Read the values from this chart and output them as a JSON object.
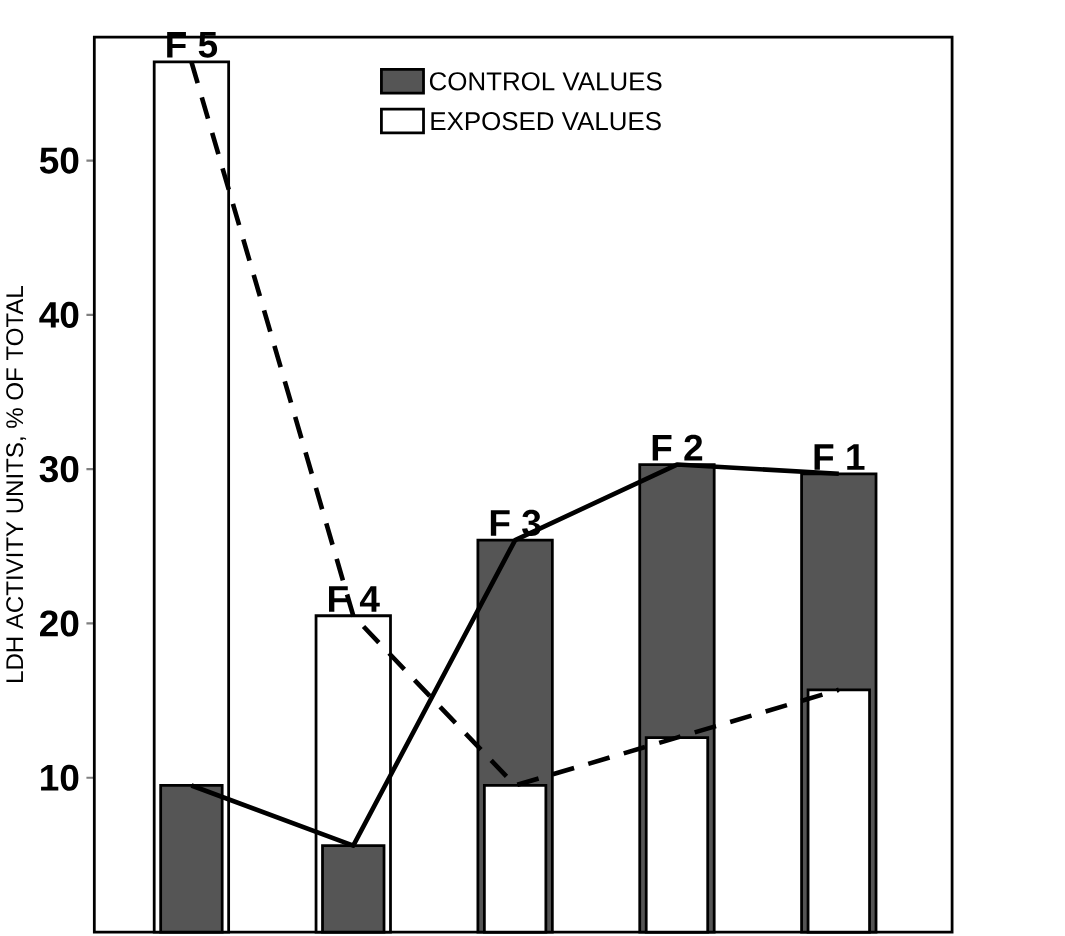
{
  "chart_data": {
    "type": "bar",
    "ylabel": "LDH ACTIVITY UNITS, % OF TOTAL",
    "categories": [
      "F 5",
      "F 4",
      "F 3",
      "F 2",
      "F 1"
    ],
    "series": [
      {
        "name": "CONTROL VALUES",
        "color": "#555555",
        "values": [
          9.5,
          5.6,
          25.4,
          30.3,
          29.7
        ]
      },
      {
        "name": "EXPOSED VALUES",
        "color": "#ffffff",
        "values": [
          56.4,
          20.5,
          9.5,
          12.6,
          15.7
        ]
      },
      {
        "type": "line",
        "color": "#000000",
        "line_style": "solid",
        "values": [
          9.5,
          5.6,
          25.4,
          30.3,
          29.7
        ]
      },
      {
        "type": "line",
        "color": "#000000",
        "line_style": "dashed",
        "values": [
          56.4,
          20.5,
          9.5,
          12.6,
          15.7
        ]
      }
    ],
    "ylim": [
      0,
      58
    ],
    "yticks": [
      10,
      20,
      30,
      40,
      50
    ],
    "grid": false,
    "legend": "top"
  }
}
